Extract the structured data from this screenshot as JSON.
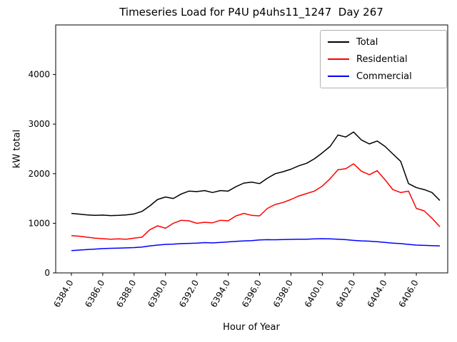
{
  "chart_data": {
    "type": "line",
    "title": "Timeseries Load for P4U p4uhs11_1247  Day 267",
    "xlabel": "Hour of Year",
    "ylabel": "kW total",
    "xlim": [
      6383,
      6408
    ],
    "ylim": [
      0,
      5000
    ],
    "xticks": [
      "6384.0",
      "6386.0",
      "6388.0",
      "6390.0",
      "6392.0",
      "6394.0",
      "6396.0",
      "6398.0",
      "6400.0",
      "6402.0",
      "6404.0",
      "6406.0"
    ],
    "yticks": [
      "0",
      "1000",
      "2000",
      "3000",
      "4000"
    ],
    "grid": false,
    "legend_position": "upper right",
    "x": [
      6384.0,
      6384.5,
      6385.0,
      6385.5,
      6386.0,
      6386.5,
      6387.0,
      6387.5,
      6388.0,
      6388.5,
      6389.0,
      6389.5,
      6390.0,
      6390.5,
      6391.0,
      6391.5,
      6392.0,
      6392.5,
      6393.0,
      6393.5,
      6394.0,
      6394.5,
      6395.0,
      6395.5,
      6396.0,
      6396.5,
      6397.0,
      6397.5,
      6398.0,
      6398.5,
      6399.0,
      6399.5,
      6400.0,
      6400.5,
      6401.0,
      6401.5,
      6402.0,
      6402.5,
      6403.0,
      6403.5,
      6404.0,
      6404.5,
      6405.0,
      6405.5,
      6406.0,
      6406.5,
      6407.0,
      6407.5
    ],
    "series": [
      {
        "name": "Total",
        "color": "#000000",
        "values": [
          1200,
          1185,
          1170,
          1160,
          1165,
          1155,
          1160,
          1170,
          1190,
          1240,
          1350,
          1480,
          1530,
          1500,
          1590,
          1650,
          1640,
          1660,
          1620,
          1660,
          1650,
          1740,
          1810,
          1830,
          1800,
          1910,
          2000,
          2040,
          2090,
          2160,
          2210,
          2300,
          2420,
          2550,
          2780,
          2740,
          2840,
          2680,
          2600,
          2660,
          2550,
          2400,
          2250,
          1800,
          1720,
          1680,
          1620,
          1460
        ]
      },
      {
        "name": "Residential",
        "color": "#ff0000",
        "values": [
          750,
          740,
          720,
          700,
          690,
          680,
          685,
          680,
          700,
          720,
          870,
          950,
          900,
          1000,
          1060,
          1050,
          1000,
          1020,
          1010,
          1060,
          1050,
          1150,
          1200,
          1160,
          1150,
          1300,
          1380,
          1420,
          1480,
          1550,
          1600,
          1650,
          1750,
          1900,
          2080,
          2100,
          2200,
          2050,
          1980,
          2060,
          1880,
          1680,
          1620,
          1650,
          1300,
          1250,
          1100,
          930
        ]
      },
      {
        "name": "Commercial",
        "color": "#0000ff",
        "values": [
          450,
          460,
          470,
          480,
          490,
          495,
          500,
          505,
          510,
          520,
          545,
          560,
          575,
          580,
          590,
          595,
          600,
          610,
          605,
          615,
          625,
          635,
          645,
          650,
          665,
          670,
          668,
          672,
          675,
          680,
          678,
          685,
          690,
          685,
          680,
          670,
          655,
          645,
          640,
          630,
          615,
          600,
          590,
          575,
          560,
          555,
          550,
          545
        ]
      }
    ]
  }
}
